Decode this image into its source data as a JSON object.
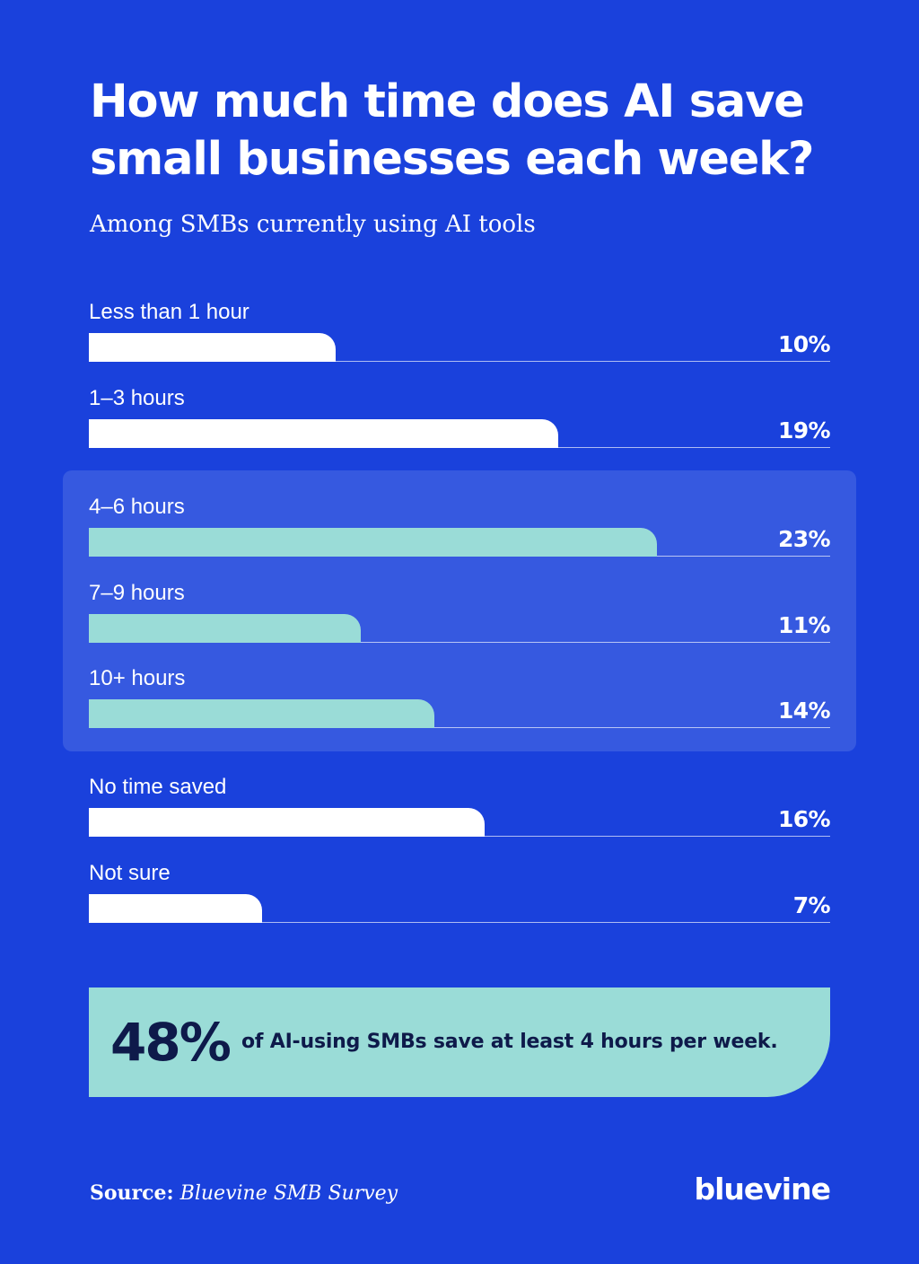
{
  "header": {
    "title": "How much time does AI save small businesses each week?",
    "subtitle": "Among SMBs currently using AI tools"
  },
  "colors": {
    "background": "#1a41dc",
    "highlight_panel": "#3659e0",
    "bar_default": "#ffffff",
    "bar_highlight": "#9adcd7",
    "callout_text": "#0e1a4a"
  },
  "chart_data": {
    "type": "bar",
    "orientation": "horizontal",
    "title": "How much time does AI save small businesses each week?",
    "subtitle": "Among SMBs currently using AI tools",
    "xlim": [
      0,
      30
    ],
    "categories": [
      "Less than 1 hour",
      "1–3 hours",
      "4–6 hours",
      "7–9 hours",
      "10+ hours",
      "No time saved",
      "Not sure"
    ],
    "values": [
      10,
      19,
      23,
      11,
      14,
      16,
      7
    ],
    "value_labels": [
      "10%",
      "19%",
      "23%",
      "11%",
      "14%",
      "16%",
      "7%"
    ],
    "highlighted": [
      false,
      false,
      true,
      true,
      true,
      false,
      false
    ]
  },
  "callout": {
    "number": "48%",
    "text": "of AI-using SMBs save at least 4 hours per week."
  },
  "footer": {
    "source_label": "Source:",
    "source_value": "Bluevine SMB Survey",
    "logo_text": "bluevine"
  }
}
